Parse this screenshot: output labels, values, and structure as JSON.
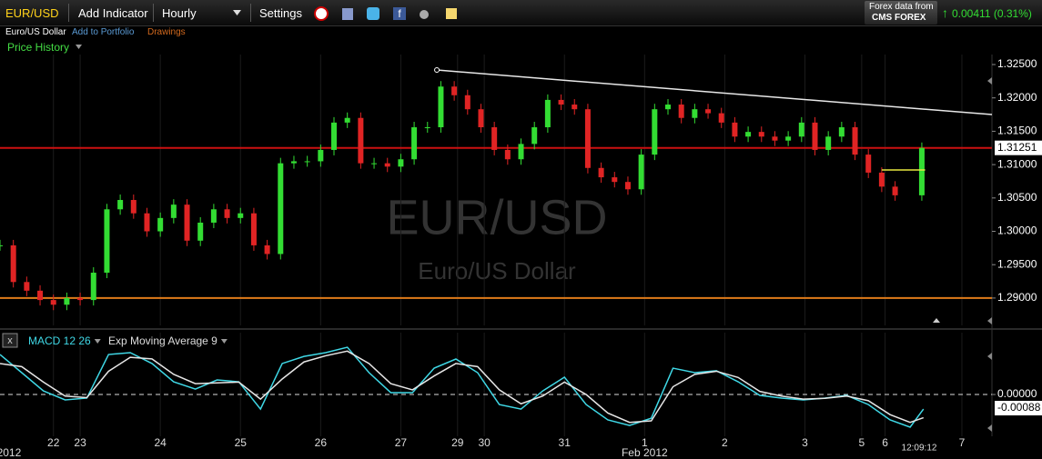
{
  "toolbar": {
    "symbol": "EUR/USD",
    "add_indicator": "Add Indicator",
    "interval": "Hourly",
    "settings": "Settings",
    "data_source": "Forex data from",
    "provider": "CMS FOREX",
    "change": "0.00411 (0.31%)"
  },
  "subbar": {
    "name": "Euro/US Dollar",
    "add_to_portfolio": "Add to Portfolio",
    "drawings": "Drawings",
    "price_history": "Price History"
  },
  "chart_data": [
    {
      "type": "candlestick",
      "watermark": "EUR/USD",
      "watermark_subtitle": "Euro/US Dollar",
      "xlim": [
        0,
        297
      ],
      "ylim": [
        1.2859,
        1.3265
      ],
      "last_value": 1.31251,
      "up_color": "#33dd33",
      "down_color": "#e02424",
      "yticks": [
        {
          "value": 1.325,
          "label": "1.32500"
        },
        {
          "value": 1.32,
          "label": "1.32000"
        },
        {
          "value": 1.315,
          "label": "1.31500"
        },
        {
          "value": 1.31,
          "label": "1.31000"
        },
        {
          "value": 1.305,
          "label": "1.30500"
        },
        {
          "value": 1.3,
          "label": "1.30000"
        },
        {
          "value": 1.295,
          "label": "1.29500"
        },
        {
          "value": 1.29,
          "label": "1.29000"
        }
      ],
      "x": [
        0,
        4,
        8,
        12,
        16,
        20,
        24,
        28,
        32,
        36,
        40,
        44,
        48,
        52,
        56,
        60,
        64,
        68,
        72,
        76,
        80,
        84,
        88,
        92,
        96,
        100,
        104,
        108,
        112,
        116,
        120,
        124,
        128,
        132,
        136,
        140,
        144,
        148,
        152,
        156,
        160,
        164,
        168,
        172,
        176,
        180,
        184,
        188,
        192,
        196,
        200,
        204,
        208,
        212,
        216,
        220,
        224,
        228,
        232,
        236,
        240,
        244,
        248,
        252,
        256,
        260,
        264,
        268,
        276
      ],
      "series": [
        {
          "values": [
            1.2979,
            1.2924,
            1.2911,
            1.2897,
            1.289,
            1.29,
            1.2897,
            1.2938,
            1.3033,
            1.3047,
            1.3027,
            1.3,
            1.302,
            1.304,
            1.2986,
            1.3013,
            1.3033,
            1.302,
            1.3027,
            1.2979,
            1.2966,
            1.3102,
            1.3105,
            1.3105,
            1.3122,
            1.3163,
            1.317,
            1.3102,
            1.3102,
            1.3097,
            1.3108,
            1.3156,
            1.3156,
            1.3217,
            1.3204,
            1.3183,
            1.3156,
            1.3122,
            1.3108,
            1.3131,
            1.3156,
            1.3197,
            1.319,
            1.3183,
            1.3095,
            1.3081,
            1.3074,
            1.3063,
            1.3115,
            1.3183,
            1.319,
            1.317,
            1.3183,
            1.3177,
            1.3163,
            1.3142,
            1.3149,
            1.3142,
            1.3136,
            1.3142,
            1.3163,
            1.3122,
            1.3142,
            1.3156,
            1.3115,
            1.3088,
            1.3067,
            1.3054,
            1.3125
          ]
        }
      ],
      "hlines": [
        {
          "value": 1.3125,
          "color": "#cc1111"
        },
        {
          "value": 1.29,
          "color": "#e07b1a"
        }
      ],
      "segment": {
        "x": [
          264,
          277
        ],
        "y": [
          1.3092,
          1.3092
        ],
        "color": "#e8e840"
      },
      "trendline": {
        "x": [
          130.8,
          297
        ],
        "y": [
          1.32418,
          1.3175
        ],
        "color": "#e8e8e8"
      }
    },
    {
      "type": "line",
      "xlim": [
        0,
        297
      ],
      "ylim": [
        -0.00258,
        0.00317
      ],
      "last_value": -0.00088,
      "yticks": [
        {
          "value": 0,
          "label": "0.00000"
        }
      ],
      "grid": true,
      "xticks": [
        {
          "value": 16,
          "label": "22"
        },
        {
          "value": 24,
          "label": "23"
        },
        {
          "value": 48,
          "label": "24"
        },
        {
          "value": 72,
          "label": "25"
        },
        {
          "value": 96,
          "label": "26"
        },
        {
          "value": 120,
          "label": "27"
        },
        {
          "value": 137,
          "label": "29"
        },
        {
          "value": 145,
          "label": "30"
        },
        {
          "value": 169,
          "label": "31"
        },
        {
          "value": 193,
          "label": "1"
        },
        {
          "value": 217,
          "label": "2"
        },
        {
          "value": 241,
          "label": "3"
        },
        {
          "value": 258,
          "label": "5"
        },
        {
          "value": 265,
          "label": "6"
        },
        {
          "value": 288,
          "label": "7"
        }
      ],
      "xticks2": [
        {
          "value": 2.7,
          "label": "2012"
        },
        {
          "value": 193,
          "label": "Feb 2012"
        }
      ],
      "time": "12:09:12",
      "x": [
        0,
        6.5,
        13,
        19.5,
        26,
        32.5,
        39,
        45.5,
        52,
        58.5,
        65,
        71.5,
        78,
        84.5,
        91,
        97.5,
        104,
        110.5,
        117,
        123.5,
        130,
        136.5,
        143,
        149.5,
        156,
        162.5,
        169,
        175.5,
        182,
        188.5,
        195,
        201.5,
        208,
        214.5,
        221,
        227.5,
        234,
        240.5,
        247,
        253.5,
        260,
        266.5,
        272.5,
        276.5
      ],
      "series": [
        {
          "name": "MACD 12 26",
          "color": "#3fd8e6",
          "values": [
            0.00258,
            0.00141,
            0.00023,
            -0.00035,
            -0.00023,
            0.00258,
            0.0027,
            0.002,
            0.00082,
            0.00035,
            0.00094,
            0.00082,
            -0.00094,
            0.002,
            0.00246,
            0.0027,
            0.00305,
            0.00141,
            0.00012,
            0.00012,
            0.0017,
            0.00229,
            0.00141,
            -0.00065,
            -0.00094,
            0.00023,
            0.00112,
            -0.00065,
            -0.00164,
            -0.002,
            -0.00153,
            0.0017,
            0.00141,
            0.00153,
            0.00082,
            -6e-05,
            -0.00023,
            -0.00035,
            -0.00023,
            -6e-05,
            -0.00065,
            -0.00164,
            -0.00211,
            -0.00094
          ]
        },
        {
          "name": "Exp Moving Average 9",
          "color": "#e6e6e6",
          "values": [
            0.002,
            0.0018,
            0.0008,
            -0.0001,
            -0.0002,
            0.0015,
            0.0024,
            0.0023,
            0.0013,
            0.0007,
            0.00075,
            0.0008,
            -0.0003,
            0.001,
            0.0021,
            0.0025,
            0.0028,
            0.002,
            0.0007,
            0.0003,
            0.0012,
            0.002,
            0.0018,
            0.0003,
            -0.0006,
            -0.0001,
            0.0008,
            0,
            -0.0012,
            -0.0018,
            -0.0017,
            0.0005,
            0.0013,
            0.0015,
            0.0011,
            0.0002,
            -0.0001,
            -0.0003,
            -0.00025,
            -0.0001,
            -0.0004,
            -0.0013,
            -0.0018,
            -0.0015
          ]
        }
      ]
    }
  ]
}
